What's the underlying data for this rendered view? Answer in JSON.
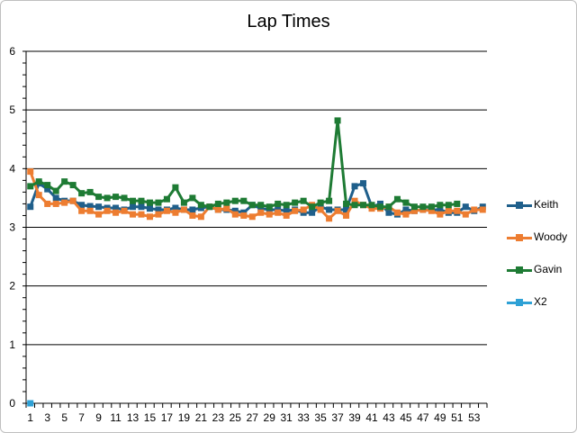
{
  "chart_data": {
    "type": "line",
    "title": "Lap Times",
    "xlabel": "",
    "ylabel": "",
    "ylim": [
      0,
      6
    ],
    "yticks": [
      0,
      1,
      2,
      3,
      4,
      5,
      6
    ],
    "x": [
      1,
      2,
      3,
      4,
      5,
      6,
      7,
      8,
      9,
      10,
      11,
      12,
      13,
      14,
      15,
      16,
      17,
      18,
      19,
      20,
      21,
      22,
      23,
      24,
      25,
      26,
      27,
      28,
      29,
      30,
      31,
      32,
      33,
      34,
      35,
      36,
      37,
      38,
      39,
      40,
      41,
      42,
      43,
      44,
      45,
      46,
      47,
      48,
      49,
      50,
      51,
      52,
      53,
      54
    ],
    "xtick_labels": [
      1,
      3,
      5,
      7,
      9,
      11,
      13,
      15,
      17,
      19,
      21,
      23,
      25,
      27,
      29,
      31,
      33,
      35,
      37,
      39,
      41,
      43,
      45,
      47,
      49,
      51,
      53
    ],
    "grid": true,
    "legend_position": "right",
    "series": [
      {
        "name": "Keith",
        "color": "#1f5f8b",
        "values": [
          3.35,
          3.75,
          3.65,
          3.5,
          3.45,
          3.45,
          3.38,
          3.36,
          3.35,
          3.33,
          3.33,
          3.3,
          3.35,
          3.35,
          3.32,
          3.3,
          3.3,
          3.33,
          3.3,
          3.3,
          3.33,
          3.35,
          3.3,
          3.3,
          3.28,
          3.25,
          3.38,
          3.32,
          3.3,
          3.3,
          3.28,
          3.3,
          3.25,
          3.25,
          3.35,
          3.3,
          3.3,
          3.3,
          3.7,
          3.75,
          3.35,
          3.4,
          3.25,
          3.22,
          3.3,
          3.28,
          3.3,
          3.3,
          3.3,
          3.25,
          3.25,
          3.35,
          3.28,
          3.35
        ]
      },
      {
        "name": "Woody",
        "color": "#ed7d31",
        "values": [
          3.95,
          3.55,
          3.4,
          3.4,
          3.42,
          3.45,
          3.28,
          3.28,
          3.22,
          3.28,
          3.25,
          3.28,
          3.22,
          3.22,
          3.18,
          3.22,
          3.28,
          3.25,
          3.3,
          3.2,
          3.18,
          3.35,
          3.3,
          3.32,
          3.22,
          3.2,
          3.18,
          3.25,
          3.22,
          3.25,
          3.2,
          3.28,
          3.3,
          3.38,
          3.3,
          3.15,
          3.28,
          3.2,
          3.45,
          3.38,
          3.32,
          3.32,
          3.35,
          3.25,
          3.22,
          3.28,
          3.3,
          3.28,
          3.22,
          3.28,
          3.28,
          3.22,
          3.3,
          3.3
        ]
      },
      {
        "name": "Gavin",
        "color": "#1e7b34",
        "values": [
          3.7,
          3.78,
          3.72,
          3.62,
          3.78,
          3.72,
          3.58,
          3.6,
          3.52,
          3.5,
          3.52,
          3.5,
          3.45,
          3.45,
          3.42,
          3.42,
          3.48,
          3.68,
          3.42,
          3.5,
          3.38,
          3.35,
          3.4,
          3.42,
          3.45,
          3.45,
          3.38,
          3.38,
          3.35,
          3.4,
          3.38,
          3.42,
          3.45,
          3.35,
          3.42,
          3.45,
          4.82,
          3.4,
          3.38,
          3.38,
          3.38,
          3.35,
          3.35,
          3.48,
          3.42,
          3.35,
          3.35,
          3.35,
          3.38,
          3.38,
          3.4,
          null,
          null,
          null
        ]
      },
      {
        "name": "X2",
        "color": "#2ea1d6",
        "values": [
          0,
          null,
          null,
          null,
          null,
          null,
          null,
          null,
          null,
          null,
          null,
          null,
          null,
          null,
          null,
          null,
          null,
          null,
          null,
          null,
          null,
          null,
          null,
          null,
          null,
          null,
          null,
          null,
          null,
          null,
          null,
          null,
          null,
          null,
          null,
          null,
          null,
          null,
          null,
          null,
          null,
          null,
          null,
          null,
          null,
          null,
          null,
          null,
          null,
          null,
          null,
          null,
          null,
          null
        ]
      }
    ]
  }
}
